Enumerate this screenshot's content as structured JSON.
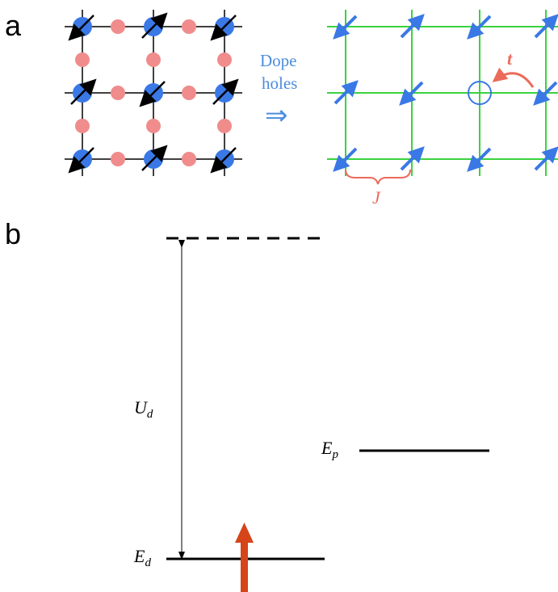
{
  "panel_a": {
    "label": "a",
    "dope_text_line1": "Dope",
    "dope_text_line2": "holes",
    "dope_arrow": "⇒",
    "hop_label": "t",
    "exchange_label": "J"
  },
  "panel_b": {
    "label": "b",
    "ud_label": "U",
    "ud_sub": "d",
    "ep_label": "E",
    "ep_sub": "p",
    "ed_label": "E",
    "ed_sub": "d"
  },
  "colors": {
    "spin_blue": "#3a78e6",
    "oxygen_pink": "#f08c8c",
    "grid_green": "#39d33f",
    "text_blue": "#4c8de0",
    "hop_red": "#ec6a5a",
    "spin_up_orange": "#d6441a"
  }
}
